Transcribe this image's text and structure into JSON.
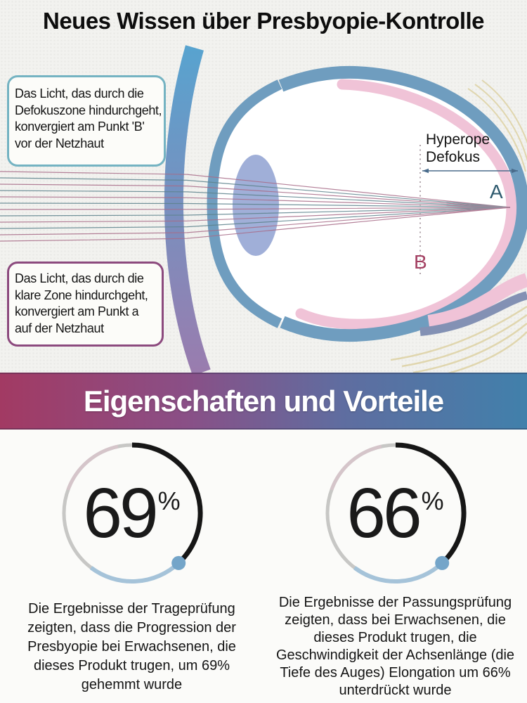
{
  "title": "Neues Wissen über Presbyopie-Kontrolle",
  "diagram": {
    "callout_top": {
      "lines": [
        "Das Licht, das durch die",
        "Defokuszone hindurchgeht,",
        "konvergiert am Punkt 'B'",
        "vor der Netzhaut"
      ]
    },
    "callout_bottom": {
      "lines": [
        "Das Licht, das durch die",
        "klare Zone hindurchgeht,",
        "konvergiert am Punkt a",
        "auf der Netzhaut"
      ]
    },
    "defocus_label": {
      "lines": [
        "Hyperope",
        "Defokus"
      ]
    },
    "point_a": "A",
    "point_b": "B",
    "colors": {
      "sclera_band": "#6f9dbf",
      "retina_band": "#f0c3d7",
      "crystalline_lens": "#96a6d4",
      "contact_lens_top": "#58a3cf",
      "contact_lens_bottom": "#9a7cae",
      "ray_defocus": "#a86c88",
      "ray_clear": "#5c828c",
      "point_a_color": "#2e5a6e",
      "point_b_color": "#a34062"
    }
  },
  "banner": {
    "label": "Eigenschaften und Vorteile",
    "gradient_from": "#a23a63",
    "gradient_to": "#4180ab"
  },
  "stats": [
    {
      "value": "69",
      "unit": "%",
      "accent": "#74a5c9",
      "description_lines": [
        "Die Ergebnisse der Trageprüfung",
        "zeigten, dass die Progression der",
        "Presbyopie bei Erwachsenen, die",
        "dieses Produkt trugen, um 69%",
        "gehemmt wurde"
      ]
    },
    {
      "value": "66",
      "unit": "%",
      "accent": "#74a5c9",
      "description_lines": [
        "Die Ergebnisse der Passungsprüfung",
        "zeigten, dass bei Erwachsenen, die",
        "dieses Produkt trugen, die",
        "Geschwindigkeit der Achsenlänge (die",
        "Tiefe des Auges) Elongation um 66%",
        "unterdrückt wurde"
      ]
    }
  ]
}
